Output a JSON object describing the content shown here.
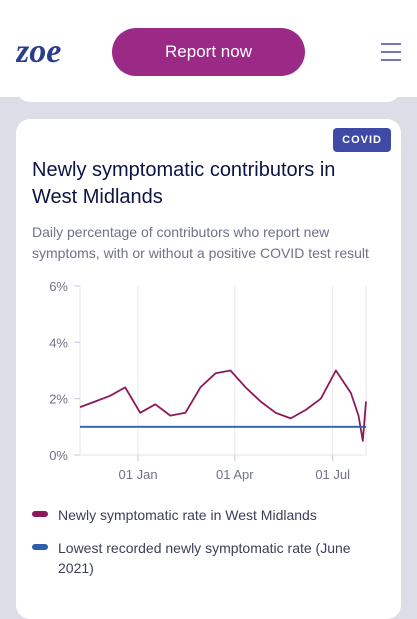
{
  "header": {
    "logo_text": "zoe",
    "report_button_label": "Report now"
  },
  "card": {
    "badge": "COVID",
    "title": "Newly symptomatic contributors in West Midlands",
    "subtitle": "Daily percentage of contributors who report new symptoms, with or without a positive COVID test result"
  },
  "colors": {
    "brand_purple": "#9b2a86",
    "series_rate": "#8b1a5b",
    "series_lowest": "#2d5fae",
    "badge": "#3e4aa6"
  },
  "chart_data": {
    "type": "line",
    "x": [
      "2020-11-08",
      "2020-11-22",
      "2020-12-06",
      "2020-12-20",
      "2021-01-03",
      "2021-01-17",
      "2021-01-31",
      "2021-02-14",
      "2021-02-28",
      "2021-03-14",
      "2021-03-28",
      "2021-04-11",
      "2021-04-25",
      "2021-05-09",
      "2021-05-23",
      "2021-06-06",
      "2021-06-20",
      "2021-07-04",
      "2021-07-18",
      "2021-07-25",
      "2021-07-29",
      "2021-08-01"
    ],
    "series": [
      {
        "name": "Newly symptomatic rate in West Midlands",
        "values": [
          1.7,
          1.9,
          2.1,
          2.4,
          1.5,
          1.8,
          1.4,
          1.5,
          2.4,
          2.9,
          3.0,
          2.4,
          1.9,
          1.5,
          1.3,
          1.6,
          2.0,
          3.0,
          2.2,
          1.4,
          0.5,
          1.9
        ]
      },
      {
        "name": "Lowest recorded newly symptomatic rate (June 2021)",
        "values": [
          1.0,
          1.0,
          1.0,
          1.0,
          1.0,
          1.0,
          1.0,
          1.0,
          1.0,
          1.0,
          1.0,
          1.0,
          1.0,
          1.0,
          1.0,
          1.0,
          1.0,
          1.0,
          1.0,
          1.0,
          1.0,
          1.0
        ]
      }
    ],
    "y_ticks": [
      "6%",
      "4%",
      "2%",
      "0%"
    ],
    "x_ticks": [
      "01 Jan",
      "01 Apr",
      "01 Jul"
    ],
    "ylim": [
      0,
      6
    ],
    "xlim": [
      "2020-11-08",
      "2021-08-01"
    ],
    "grid": "vertical",
    "legend_position": "bottom"
  }
}
